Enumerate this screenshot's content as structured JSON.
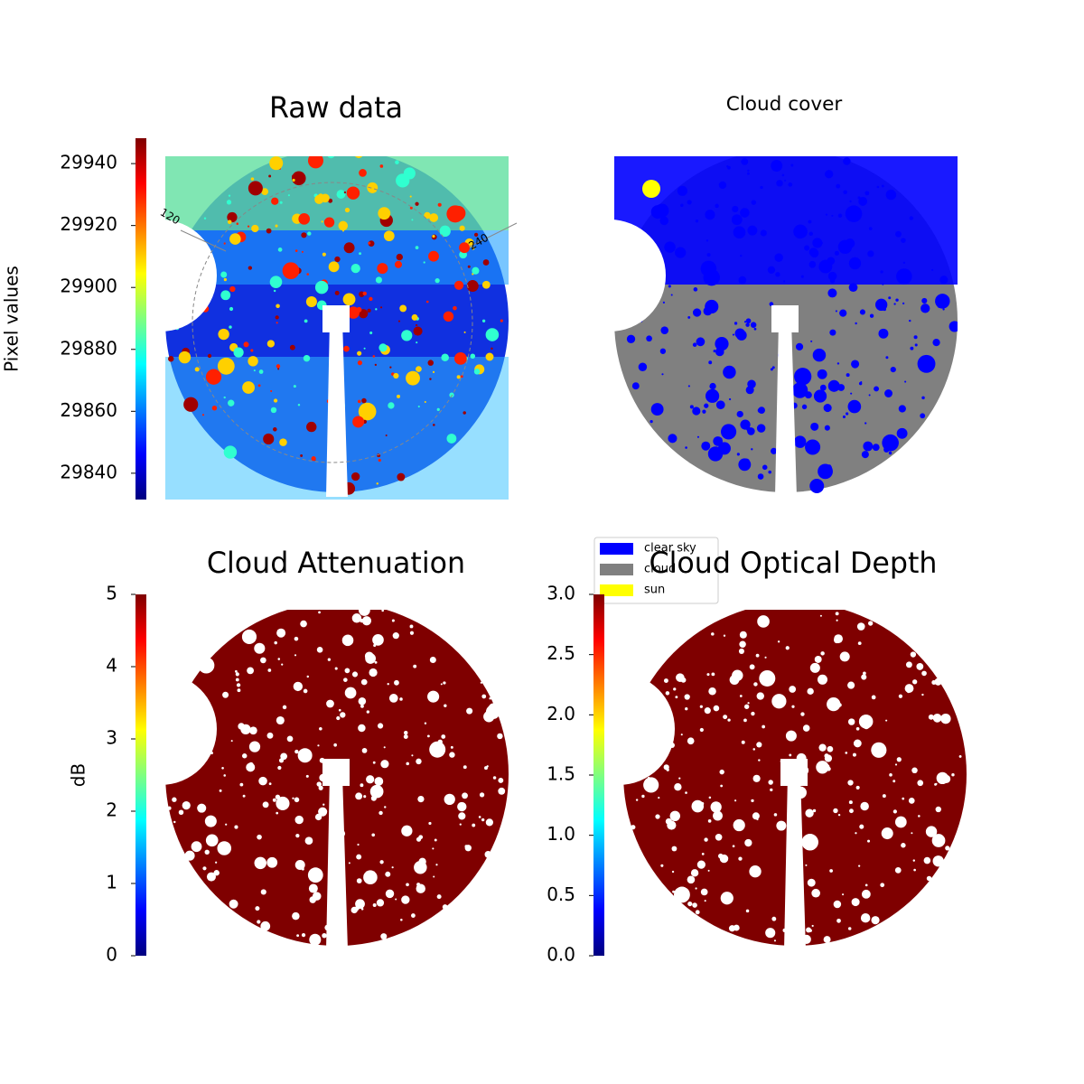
{
  "chart_data": [
    {
      "type": "image",
      "title": "Raw data",
      "colorbar": {
        "label": "Pixel values",
        "colormap": "jet",
        "lim": [
          29831.5,
          29948.2
        ],
        "ticks": [
          29840,
          29860,
          29880,
          29900,
          29920,
          29940
        ]
      },
      "annotations": [
        "120",
        "240"
      ]
    },
    {
      "type": "image",
      "title": "Cloud cover",
      "series": [
        {
          "name": "clear sky",
          "color": "#0000ff"
        },
        {
          "name": "cloud",
          "color": "#808080"
        },
        {
          "name": "sun",
          "color": "#ffff00"
        }
      ]
    },
    {
      "type": "image",
      "title": "Cloud Attenuation",
      "colorbar": {
        "label": "dB",
        "colormap": "jet",
        "lim": [
          0,
          5
        ],
        "ticks": [
          0,
          1,
          2,
          3,
          4,
          5
        ]
      }
    },
    {
      "type": "image",
      "title": "Cloud Optical Depth",
      "colorbar": {
        "colormap": "jet",
        "lim": [
          0,
          3
        ],
        "ticks": [
          {
            "value": 0,
            "label": "0.0"
          },
          0.5,
          {
            "value": 1,
            "label": "1.0"
          },
          1.5,
          {
            "value": 2,
            "label": "2.0"
          },
          2.5,
          {
            "value": 3,
            "label": "3.0"
          }
        ]
      }
    }
  ]
}
